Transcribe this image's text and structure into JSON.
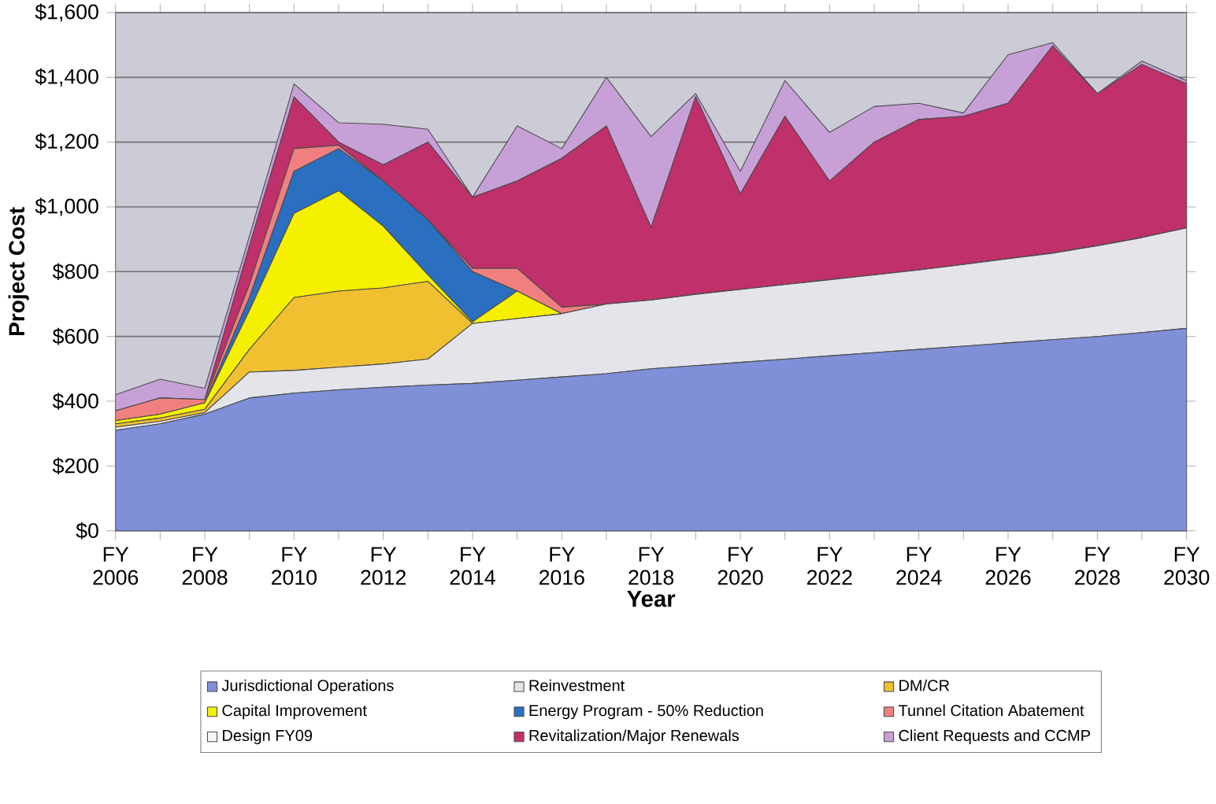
{
  "chart_data": {
    "type": "area",
    "stacked": true,
    "xlabel": "Year",
    "ylabel": "Project Cost",
    "categories": [
      "FY 2006",
      null,
      "FY 2008",
      null,
      "FY 2010",
      null,
      "FY 2012",
      null,
      "FY 2014",
      null,
      "FY 2016",
      null,
      "FY 2018",
      null,
      "FY 2020",
      null,
      "FY 2022",
      null,
      "FY 2024",
      null,
      "FY 2026",
      null,
      "FY 2028",
      null,
      "FY 2030"
    ],
    "ylim": [
      0,
      1600
    ],
    "yticks": [
      {
        "value": 0,
        "label": "$0"
      },
      {
        "value": 200,
        "label": "$200"
      },
      {
        "value": 400,
        "label": "$400"
      },
      {
        "value": 600,
        "label": "$600"
      },
      {
        "value": 800,
        "label": "$800"
      },
      {
        "value": 1000,
        "label": "$1,000"
      },
      {
        "value": 1200,
        "label": "$1,200"
      },
      {
        "value": 1400,
        "label": "$1,400"
      },
      {
        "value": 1600,
        "label": "$1,600"
      }
    ],
    "grid": "y",
    "legend": "bottom",
    "series": [
      {
        "name": "Jurisdictional Operations",
        "color": "#7f8fd8",
        "values": [
          310,
          330,
          360,
          410,
          425,
          435,
          443,
          450,
          455,
          465,
          475,
          485,
          500,
          510,
          520,
          530,
          540,
          550,
          560,
          570,
          580,
          590,
          600,
          612,
          625
        ]
      },
      {
        "name": "Reinvestment",
        "color": "#e4e4ea",
        "values": [
          10,
          8,
          5,
          80,
          70,
          70,
          72,
          80,
          185,
          190,
          195,
          215,
          212,
          220,
          225,
          230,
          235,
          240,
          245,
          252,
          260,
          267,
          280,
          293,
          310
        ]
      },
      {
        "name": "DM/CR",
        "color": "#f0c030",
        "values": [
          10,
          10,
          10,
          70,
          225,
          235,
          235,
          240,
          0,
          0,
          0,
          0,
          0,
          0,
          0,
          0,
          0,
          0,
          0,
          0,
          0,
          0,
          0,
          0,
          0
        ]
      },
      {
        "name": "Capital Improvement",
        "color": "#f5f000",
        "values": [
          10,
          12,
          20,
          120,
          260,
          310,
          190,
          20,
          5,
          85,
          0,
          0,
          0,
          0,
          0,
          0,
          0,
          0,
          0,
          0,
          0,
          0,
          0,
          0,
          0
        ]
      },
      {
        "name": "Energy Program - 50% Reduction",
        "color": "#2a6fc0",
        "values": [
          0,
          0,
          0,
          40,
          130,
          130,
          140,
          170,
          155,
          0,
          0,
          0,
          0,
          0,
          0,
          0,
          0,
          0,
          0,
          0,
          0,
          0,
          0,
          0,
          0
        ]
      },
      {
        "name": "Tunnel Citation Abatement",
        "color": "#f08080",
        "values": [
          30,
          50,
          10,
          40,
          70,
          10,
          0,
          0,
          10,
          70,
          20,
          0,
          0,
          0,
          0,
          0,
          0,
          0,
          0,
          0,
          0,
          0,
          0,
          0,
          0
        ]
      },
      {
        "name": "Design FY09",
        "color": "#f4f4f4",
        "values": [
          null,
          null,
          null,
          null,
          null,
          null,
          null,
          null,
          null,
          null,
          null,
          null,
          null,
          null,
          null,
          null,
          null,
          null,
          null,
          null,
          null,
          null,
          null,
          null,
          null
        ]
      },
      {
        "name": "Revitalization/Major Renewals",
        "color": "#c0306a",
        "values": [
          0,
          0,
          0,
          120,
          160,
          10,
          50,
          240,
          220,
          270,
          460,
          550,
          225,
          610,
          295,
          520,
          305,
          410,
          465,
          458,
          480,
          640,
          470,
          535,
          445
        ]
      },
      {
        "name": "Client Requests and CCMP",
        "color": "#c7a0d8",
        "values": [
          50,
          58,
          35,
          30,
          40,
          60,
          125,
          40,
          0,
          170,
          30,
          150,
          280,
          10,
          70,
          110,
          150,
          110,
          50,
          10,
          150,
          10,
          0,
          10,
          10
        ]
      }
    ]
  }
}
